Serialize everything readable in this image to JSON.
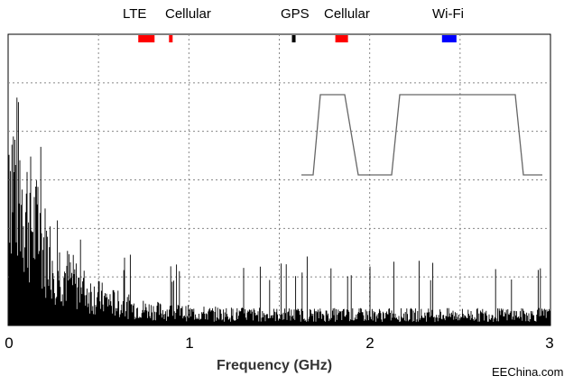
{
  "chart_data": {
    "type": "line",
    "title": "",
    "xlabel": "Frequency (GHz)",
    "ylabel": "",
    "xlim": [
      0,
      3
    ],
    "x_ticks": [
      "0",
      "1",
      "2",
      "3"
    ],
    "grid": true,
    "bands": [
      {
        "label": "LTE",
        "from": 0.72,
        "to": 0.81,
        "color": "#ff0000"
      },
      {
        "label": "Cellular",
        "from": 0.89,
        "to": 0.91,
        "color": "#ff0000"
      },
      {
        "label": "GPS",
        "from": 1.57,
        "to": 1.59,
        "color": "#000000"
      },
      {
        "label": "Cellular",
        "from": 1.81,
        "to": 1.88,
        "color": "#ff0000"
      },
      {
        "label": "Wi-Fi",
        "from": 2.4,
        "to": 2.48,
        "color": "#0000ff"
      }
    ]
  },
  "watermark": "EEChina.com"
}
